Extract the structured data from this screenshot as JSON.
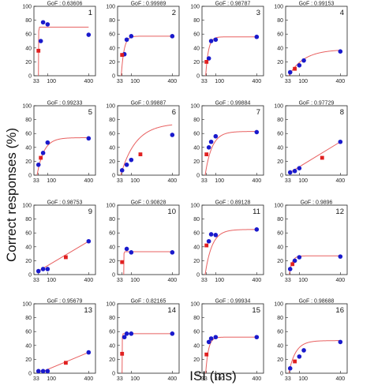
{
  "figure": {
    "ylabel": "Correct responses (%)",
    "xlabel": "ISI (ms)"
  },
  "chart_data": [
    {
      "type": "scatter",
      "panel": "1",
      "gof": "GoF : 0.63606",
      "x": [
        33,
        50,
        67,
        100,
        400
      ],
      "y": [
        36,
        50,
        77,
        74,
        59
      ],
      "fit": {
        "shape": "step",
        "x0": 33,
        "rise": "sharp",
        "plateau": 70
      },
      "red_points": [
        [
          33,
          36
        ]
      ],
      "xlim": [
        0,
        450
      ],
      "ylim": [
        0,
        100
      ]
    },
    {
      "type": "scatter",
      "panel": "2",
      "gof": "GoF : 0.99989",
      "x": [
        33,
        50,
        67,
        100,
        400
      ],
      "y": [
        30,
        31,
        52,
        57,
        57
      ],
      "fit": {
        "shape": "saturating",
        "plateau": 57,
        "rise": "fast"
      },
      "red_points": [
        [
          33,
          30
        ]
      ],
      "xlim": [
        0,
        450
      ],
      "ylim": [
        0,
        100
      ]
    },
    {
      "type": "scatter",
      "panel": "3",
      "gof": "GoF : 0.98787",
      "x": [
        33,
        50,
        67,
        100,
        400
      ],
      "y": [
        20,
        25,
        50,
        52,
        56
      ],
      "fit": {
        "shape": "saturating",
        "plateau": 56,
        "rise": "fast"
      },
      "red_points": [
        [
          33,
          20
        ]
      ],
      "xlim": [
        0,
        450
      ],
      "ylim": [
        0,
        100
      ]
    },
    {
      "type": "scatter",
      "panel": "4",
      "gof": "GoF : 0.99153",
      "x": [
        33,
        67,
        100,
        133,
        400
      ],
      "y": [
        5,
        10,
        15,
        22,
        35
      ],
      "fit": {
        "shape": "saturating",
        "plateau": 38,
        "rise": "slow"
      },
      "red_points": [
        [
          67,
          10
        ]
      ],
      "xlim": [
        0,
        450
      ],
      "ylim": [
        0,
        100
      ]
    },
    {
      "type": "scatter",
      "panel": "5",
      "gof": "GoF : 0.99233",
      "x": [
        33,
        50,
        67,
        100,
        400
      ],
      "y": [
        15,
        25,
        32,
        47,
        53
      ],
      "fit": {
        "shape": "saturating",
        "plateau": 54,
        "rise": "medium"
      },
      "red_points": [
        [
          50,
          25
        ]
      ],
      "xlim": [
        0,
        450
      ],
      "ylim": [
        0,
        100
      ]
    },
    {
      "type": "scatter",
      "panel": "6",
      "gof": "GoF : 0.99887",
      "x": [
        33,
        67,
        100,
        167,
        400
      ],
      "y": [
        7,
        15,
        22,
        30,
        58
      ],
      "fit": {
        "shape": "saturating",
        "plateau": 75,
        "rise": "slow"
      },
      "red_points": [
        [
          167,
          30
        ]
      ],
      "xlim": [
        0,
        450
      ],
      "ylim": [
        0,
        100
      ]
    },
    {
      "type": "scatter",
      "panel": "7",
      "gof": "GoF : 0.99884",
      "x": [
        33,
        50,
        67,
        100,
        400
      ],
      "y": [
        30,
        40,
        48,
        56,
        62
      ],
      "fit": {
        "shape": "saturating",
        "plateau": 63,
        "rise": "medium"
      },
      "red_points": [
        [
          33,
          30
        ]
      ],
      "xlim": [
        0,
        450
      ],
      "ylim": [
        0,
        100
      ]
    },
    {
      "type": "scatter",
      "panel": "8",
      "gof": "GoF : 0.97729",
      "x": [
        33,
        67,
        100,
        267,
        400
      ],
      "y": [
        4,
        6,
        10,
        25,
        48
      ],
      "fit": {
        "shape": "linear"
      },
      "red_points": [
        [
          267,
          25
        ]
      ],
      "xlim": [
        0,
        450
      ],
      "ylim": [
        0,
        100
      ]
    },
    {
      "type": "scatter",
      "panel": "9",
      "gof": "GoF : 0.98753",
      "x": [
        33,
        67,
        100,
        233,
        400
      ],
      "y": [
        5,
        8,
        8,
        25,
        48
      ],
      "fit": {
        "shape": "linear"
      },
      "red_points": [
        [
          233,
          25
        ]
      ],
      "xlim": [
        0,
        450
      ],
      "ylim": [
        0,
        100
      ]
    },
    {
      "type": "scatter",
      "panel": "10",
      "gof": "GoF : 0.90828",
      "x": [
        33,
        67,
        100,
        400
      ],
      "y": [
        18,
        37,
        32,
        32
      ],
      "fit": {
        "shape": "step",
        "x0": 45,
        "plateau": 33
      },
      "red_points": [
        [
          33,
          18
        ]
      ],
      "xlim": [
        0,
        450
      ],
      "ylim": [
        0,
        100
      ]
    },
    {
      "type": "scatter",
      "panel": "11",
      "gof": "GoF : 0.89128",
      "x": [
        33,
        50,
        67,
        100,
        400
      ],
      "y": [
        42,
        48,
        58,
        57,
        65
      ],
      "fit": {
        "shape": "saturating",
        "plateau": 65,
        "rise": "medium"
      },
      "red_points": [
        [
          33,
          42
        ]
      ],
      "xlim": [
        0,
        450
      ],
      "ylim": [
        0,
        100
      ]
    },
    {
      "type": "scatter",
      "panel": "12",
      "gof": "GoF : 0.9896",
      "x": [
        33,
        50,
        67,
        100,
        400
      ],
      "y": [
        8,
        15,
        20,
        25,
        26
      ],
      "fit": {
        "shape": "saturating",
        "plateau": 27,
        "rise": "fast"
      },
      "red_points": [
        [
          50,
          15
        ]
      ],
      "xlim": [
        0,
        450
      ],
      "ylim": [
        0,
        100
      ]
    },
    {
      "type": "scatter",
      "panel": "13",
      "gof": "GoF : 0.95679",
      "x": [
        33,
        67,
        100,
        233,
        400
      ],
      "y": [
        3,
        3,
        3,
        15,
        30
      ],
      "fit": {
        "shape": "linear_from",
        "x_start": 70
      },
      "red_points": [
        [
          233,
          15
        ]
      ],
      "xlim": [
        0,
        450
      ],
      "ylim": [
        0,
        100
      ]
    },
    {
      "type": "scatter",
      "panel": "14",
      "gof": "GoF : 0.82165",
      "x": [
        33,
        50,
        67,
        100,
        400
      ],
      "y": [
        28,
        52,
        57,
        57,
        57
      ],
      "fit": {
        "shape": "step",
        "x0": 33,
        "plateau": 57
      },
      "red_points": [
        [
          33,
          28
        ]
      ],
      "xlim": [
        0,
        450
      ],
      "ylim": [
        0,
        100
      ]
    },
    {
      "type": "scatter",
      "panel": "15",
      "gof": "GoF : 0.99934",
      "x": [
        33,
        50,
        67,
        100,
        400
      ],
      "y": [
        27,
        45,
        50,
        52,
        52
      ],
      "fit": {
        "shape": "saturating",
        "plateau": 52,
        "rise": "fast"
      },
      "red_points": [
        [
          33,
          27
        ]
      ],
      "xlim": [
        0,
        450
      ],
      "ylim": [
        0,
        100
      ]
    },
    {
      "type": "scatter",
      "panel": "16",
      "gof": "GoF : 0.98688",
      "x": [
        33,
        67,
        100,
        133,
        400
      ],
      "y": [
        7,
        17,
        24,
        33,
        45
      ],
      "fit": {
        "shape": "saturating",
        "plateau": 47,
        "rise": "medium"
      },
      "red_points": [
        [
          67,
          17
        ]
      ],
      "xlim": [
        0,
        450
      ],
      "ylim": [
        0,
        100
      ]
    }
  ],
  "axis": {
    "yticks": [
      "0",
      "20",
      "40",
      "60",
      "80",
      "100"
    ],
    "xticks": [
      "33",
      "100",
      "400"
    ]
  },
  "colors": {
    "point": "#1a1acc",
    "red": "#e02020",
    "fit": "#e86060",
    "axis": "#222222"
  }
}
